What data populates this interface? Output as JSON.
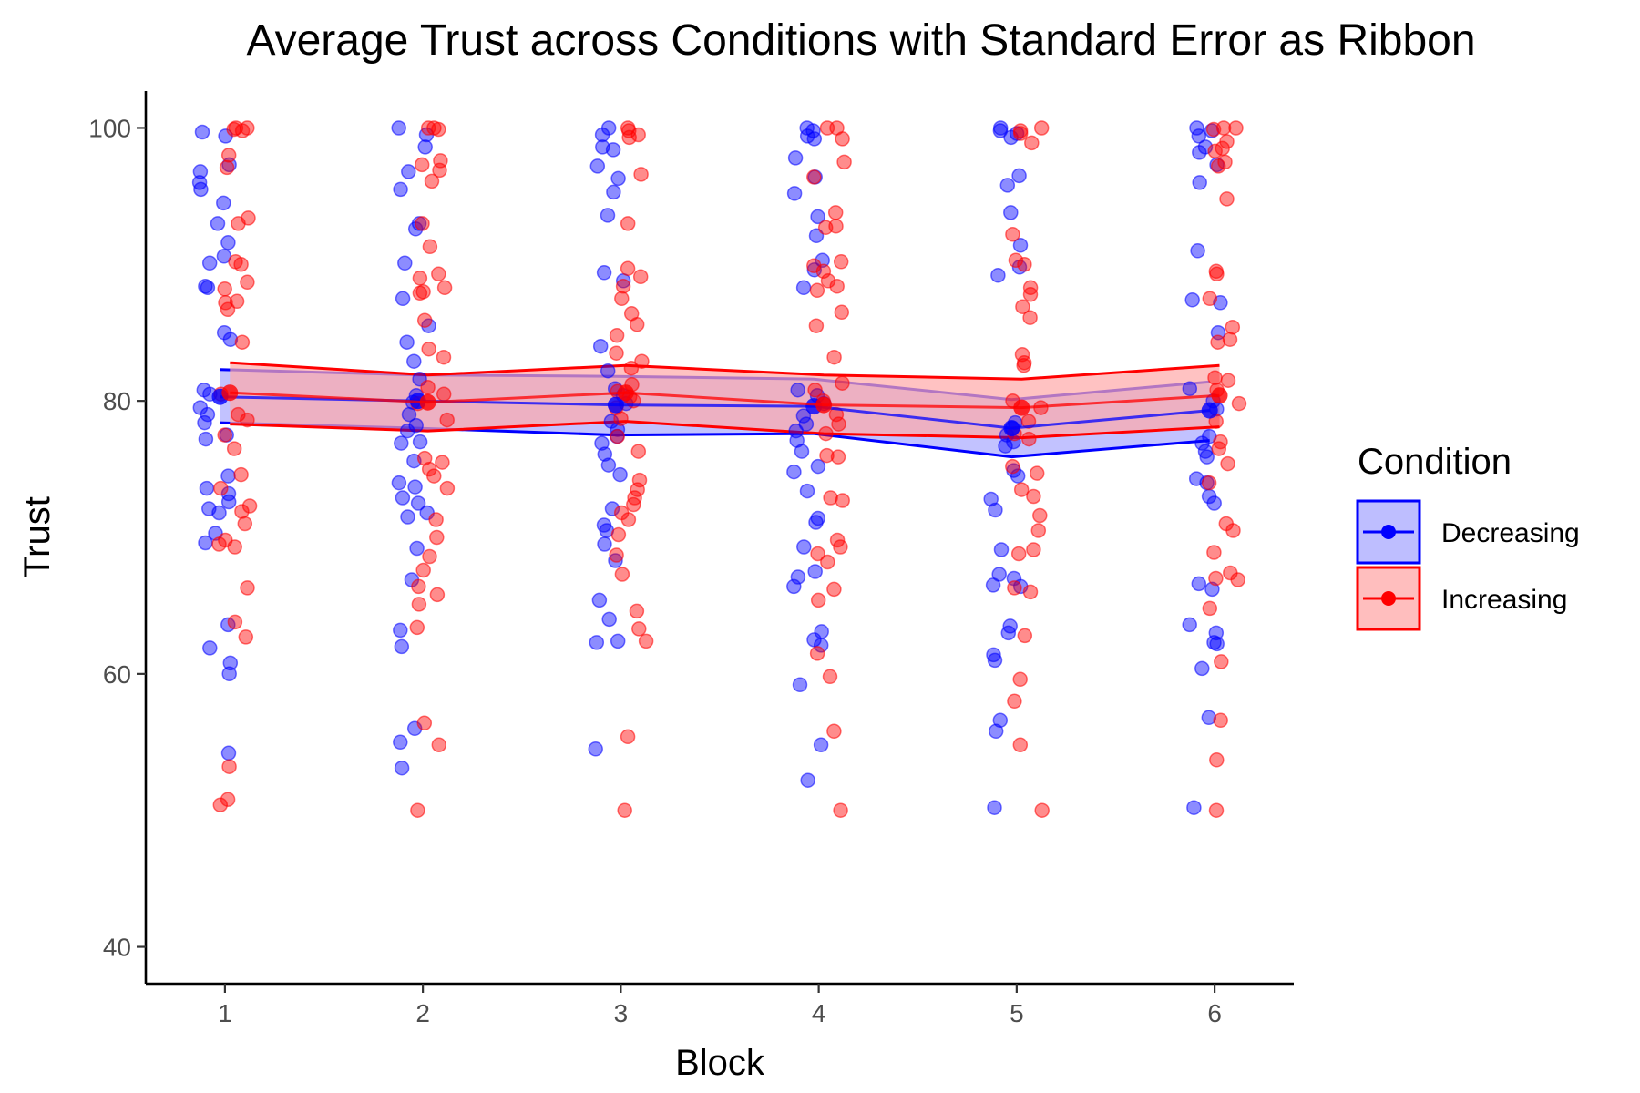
{
  "chart_data": {
    "type": "line",
    "title": "Average Trust across Conditions with Standard Error as Ribbon",
    "xlabel": "Block",
    "ylabel": "Trust",
    "x": [
      1,
      2,
      3,
      4,
      5,
      6
    ],
    "x_tick_labels": [
      "1",
      "2",
      "3",
      "4",
      "5",
      "6"
    ],
    "xlim": [
      0.6,
      6.4
    ],
    "ylim": [
      37.3,
      102.7
    ],
    "y_ticks": [
      40,
      60,
      80,
      100
    ],
    "y_tick_labels": [
      "40",
      "60",
      "80",
      "100"
    ],
    "grid": false,
    "legend": {
      "title": "Condition",
      "position": "right"
    },
    "series": [
      {
        "name": "Decreasing",
        "color": "#0000ff",
        "fill": "#a8a8ff",
        "mean": [
          80.3,
          80.0,
          79.7,
          79.6,
          78.0,
          79.3
        ],
        "se_lower": [
          78.4,
          78.0,
          77.5,
          77.6,
          75.9,
          77.1
        ],
        "se_upper": [
          82.3,
          81.9,
          81.8,
          81.6,
          80.1,
          81.4
        ],
        "points": [
          [
            99.7,
            99.4,
            97.3,
            96.8,
            96.0,
            95.5,
            94.5,
            93.0,
            91.6,
            90.6,
            90.1,
            88.4,
            88.3,
            85.0,
            84.5,
            80.8,
            80.5,
            79.5,
            79.0,
            78.4,
            77.5,
            77.2,
            74.5,
            73.6,
            73.2,
            72.6,
            72.1,
            71.8,
            70.3,
            69.6,
            63.6,
            61.9,
            60.8,
            60.0,
            54.2
          ],
          [
            100.0,
            99.5,
            98.6,
            96.8,
            95.5,
            93.0,
            92.6,
            90.1,
            87.5,
            85.5,
            84.3,
            82.9,
            81.6,
            80.4,
            79.9,
            79.0,
            78.2,
            77.8,
            77.0,
            76.9,
            75.6,
            74.0,
            73.7,
            72.9,
            72.5,
            71.8,
            71.5,
            69.2,
            66.9,
            63.2,
            62.0,
            56.0,
            55.0,
            53.1
          ],
          [
            100.0,
            99.5,
            98.6,
            98.4,
            97.2,
            96.3,
            95.3,
            93.6,
            89.4,
            88.8,
            84.0,
            82.2,
            80.9,
            80.4,
            79.8,
            78.5,
            77.9,
            77.4,
            76.9,
            76.1,
            75.3,
            74.6,
            72.1,
            70.9,
            70.5,
            69.5,
            68.3,
            65.4,
            64.0,
            62.4,
            62.3,
            54.5
          ],
          [
            100.0,
            99.8,
            99.4,
            99.2,
            97.8,
            96.4,
            95.2,
            93.5,
            92.1,
            90.3,
            89.6,
            88.3,
            80.8,
            80.4,
            79.8,
            78.9,
            78.3,
            77.8,
            77.1,
            76.3,
            75.2,
            74.8,
            73.4,
            71.4,
            71.1,
            69.3,
            67.5,
            67.1,
            66.4,
            63.1,
            62.5,
            62.1,
            59.2,
            54.8,
            52.2
          ],
          [
            100.0,
            99.8,
            99.6,
            99.3,
            96.5,
            95.8,
            93.8,
            91.4,
            89.8,
            89.2,
            78.4,
            78.0,
            77.5,
            77.0,
            76.7,
            74.9,
            74.5,
            72.8,
            72.0,
            69.1,
            67.3,
            67.0,
            66.5,
            66.4,
            63.5,
            63.0,
            61.4,
            61.0,
            56.6,
            55.8,
            50.2
          ],
          [
            100.0,
            99.8,
            99.4,
            98.6,
            98.2,
            97.3,
            96.0,
            91.0,
            87.4,
            87.2,
            85.0,
            80.9,
            80.0,
            79.4,
            77.4,
            76.9,
            76.3,
            75.9,
            74.3,
            74.0,
            73.0,
            72.5,
            66.6,
            66.2,
            63.6,
            63.0,
            62.3,
            62.2,
            60.4,
            56.8,
            50.2
          ]
        ]
      },
      {
        "name": "Increasing",
        "color": "#ff0000",
        "fill": "#ffa8a8",
        "mean": [
          80.6,
          79.9,
          80.6,
          79.7,
          79.5,
          80.4
        ],
        "se_lower": [
          78.3,
          77.8,
          78.5,
          77.6,
          77.3,
          78.1
        ],
        "se_upper": [
          82.8,
          81.9,
          82.6,
          81.9,
          81.6,
          82.6
        ],
        "points": [
          [
            100.0,
            100.0,
            99.9,
            99.8,
            98.0,
            97.1,
            93.4,
            93.0,
            90.2,
            90.0,
            88.7,
            88.2,
            87.3,
            87.2,
            86.7,
            84.3,
            80.5,
            79.0,
            78.6,
            77.5,
            76.5,
            74.6,
            73.6,
            72.3,
            71.9,
            71.0,
            69.8,
            69.5,
            69.3,
            66.3,
            63.8,
            62.7,
            53.2,
            50.8,
            50.4
          ],
          [
            100.0,
            100.0,
            99.9,
            97.6,
            97.3,
            96.9,
            96.1,
            93.0,
            91.3,
            89.3,
            89.0,
            88.3,
            88.0,
            87.9,
            85.9,
            83.8,
            83.2,
            81.0,
            80.5,
            79.8,
            78.6,
            75.8,
            75.5,
            75.0,
            74.5,
            73.6,
            71.3,
            70.0,
            68.6,
            67.6,
            66.4,
            65.8,
            65.1,
            63.4,
            56.4,
            54.8,
            50.0
          ],
          [
            100.0,
            99.8,
            99.5,
            99.3,
            96.6,
            93.0,
            89.7,
            89.1,
            88.4,
            87.5,
            86.4,
            85.6,
            84.8,
            83.5,
            82.9,
            82.4,
            81.2,
            80.7,
            80.3,
            80.0,
            79.5,
            78.7,
            77.4,
            76.3,
            74.2,
            73.5,
            72.9,
            72.4,
            71.8,
            71.3,
            70.2,
            68.7,
            67.3,
            64.6,
            63.3,
            62.4,
            55.4,
            50.0
          ],
          [
            100.0,
            100.0,
            99.2,
            97.5,
            96.4,
            93.8,
            92.8,
            92.7,
            90.2,
            89.9,
            89.5,
            88.8,
            88.4,
            88.1,
            86.5,
            85.5,
            83.2,
            81.3,
            80.8,
            80.0,
            79.0,
            78.3,
            77.6,
            76.0,
            75.9,
            72.9,
            72.7,
            69.8,
            69.3,
            68.8,
            68.2,
            66.2,
            65.4,
            61.5,
            59.8,
            55.8,
            50.0
          ],
          [
            100.0,
            99.8,
            99.6,
            98.9,
            92.2,
            90.3,
            90.0,
            88.3,
            87.8,
            86.9,
            86.1,
            83.4,
            82.8,
            82.6,
            80.0,
            79.5,
            78.5,
            77.6,
            77.2,
            75.2,
            74.7,
            73.5,
            73.0,
            71.6,
            70.5,
            69.1,
            68.8,
            66.3,
            66.0,
            62.8,
            59.6,
            58.0,
            54.8,
            50.0
          ],
          [
            100.0,
            100.0,
            99.9,
            99.0,
            98.5,
            98.3,
            97.5,
            97.2,
            94.8,
            89.5,
            89.3,
            87.5,
            85.4,
            84.5,
            84.3,
            81.7,
            81.5,
            80.8,
            79.8,
            78.5,
            77.0,
            76.5,
            75.4,
            74.0,
            71.0,
            70.5,
            68.9,
            67.4,
            67.0,
            66.9,
            64.8,
            60.9,
            56.6,
            53.7,
            50.0
          ]
        ]
      }
    ]
  }
}
